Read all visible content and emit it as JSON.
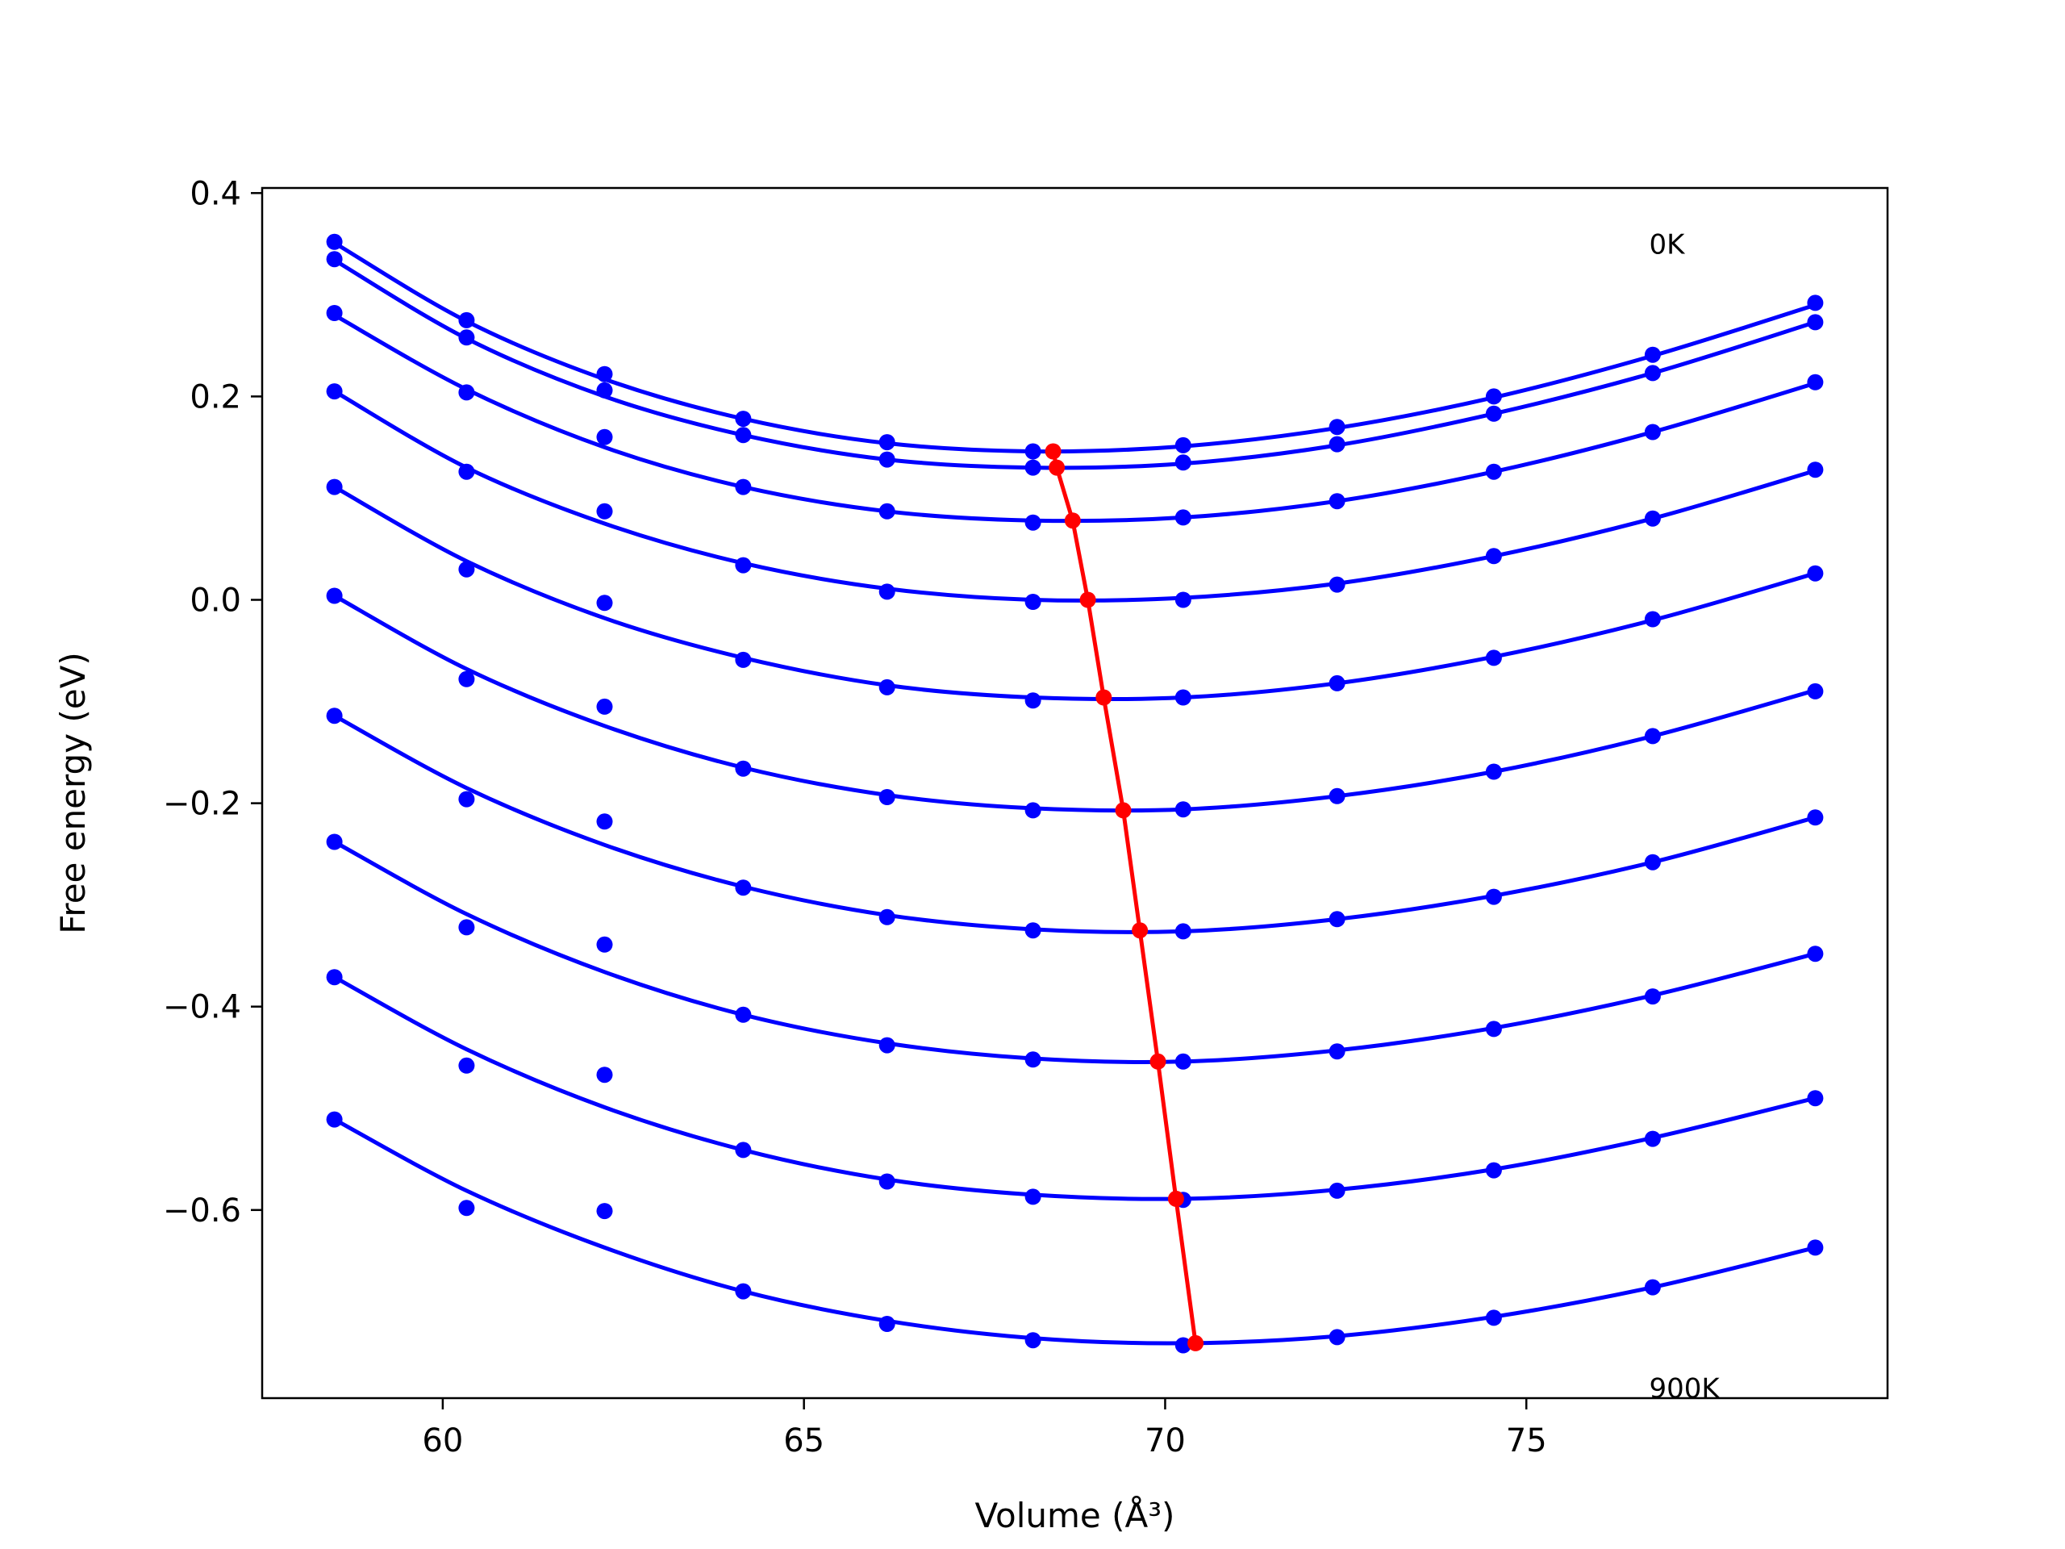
{
  "chart_data": {
    "type": "line",
    "xlabel": "Volume (Å³)",
    "ylabel": "Free energy (eV)",
    "xlim": [
      57.5,
      80.0
    ],
    "ylim": [
      -0.785,
      0.405
    ],
    "xticks": [
      60,
      65,
      70,
      75
    ],
    "yticks": [
      0.4,
      0.2,
      0.0,
      -0.2,
      -0.4,
      -0.6
    ],
    "ytick_labels": [
      "0.4",
      "0.2",
      "0.0",
      "−0.2",
      "−0.4",
      "−0.6"
    ],
    "grid": false,
    "legend": "none",
    "x": [
      58.5,
      60.33,
      62.24,
      64.16,
      66.15,
      68.17,
      70.25,
      72.38,
      74.55,
      76.75,
      79.0
    ],
    "annotations": [
      {
        "text": "0K",
        "x": 76.7,
        "y": 0.35
      },
      {
        "text": "900K",
        "x": 76.7,
        "y": -0.775
      }
    ],
    "series": [
      {
        "color": "#0000ff",
        "points": [
          0.352,
          0.275,
          0.222,
          0.178,
          0.155,
          0.146,
          0.152,
          0.17,
          0.2,
          0.241,
          0.292
        ],
        "fit": [
          0.351,
          0.274,
          0.217,
          0.178,
          0.154,
          0.146,
          0.151,
          0.169,
          0.199,
          0.24,
          0.29
        ]
      },
      {
        "color": "#0000ff",
        "points": [
          0.335,
          0.258,
          0.206,
          0.162,
          0.138,
          0.13,
          0.135,
          0.153,
          0.183,
          0.223,
          0.273
        ],
        "fit": [
          0.334,
          0.257,
          0.2,
          0.162,
          0.138,
          0.13,
          0.134,
          0.152,
          0.183,
          0.223,
          0.273
        ]
      },
      {
        "color": "#0000ff",
        "points": [
          0.282,
          0.204,
          0.16,
          0.111,
          0.087,
          0.076,
          0.081,
          0.097,
          0.126,
          0.165,
          0.214
        ],
        "fit": [
          0.28,
          0.207,
          0.15,
          0.111,
          0.087,
          0.078,
          0.081,
          0.097,
          0.126,
          0.165,
          0.213
        ]
      },
      {
        "color": "#0000ff",
        "points": [
          0.205,
          0.126,
          0.087,
          0.034,
          0.008,
          -0.002,
          0.0,
          0.015,
          0.043,
          0.08,
          0.128
        ],
        "fit": [
          0.205,
          0.13,
          0.075,
          0.036,
          0.011,
          0.0,
          0.002,
          0.016,
          0.043,
          0.08,
          0.127
        ]
      },
      {
        "color": "#0000ff",
        "points": [
          0.111,
          0.03,
          -0.003,
          -0.059,
          -0.086,
          -0.099,
          -0.096,
          -0.082,
          -0.057,
          -0.019,
          0.026
        ],
        "fit": [
          0.111,
          0.038,
          -0.018,
          -0.057,
          -0.084,
          -0.096,
          -0.096,
          -0.082,
          -0.056,
          -0.02,
          0.026
        ]
      },
      {
        "color": "#0000ff",
        "points": [
          0.004,
          -0.078,
          -0.105,
          -0.166,
          -0.194,
          -0.207,
          -0.206,
          -0.193,
          -0.169,
          -0.134,
          -0.09
        ],
        "fit": [
          0.004,
          -0.068,
          -0.124,
          -0.165,
          -0.192,
          -0.205,
          -0.206,
          -0.193,
          -0.169,
          -0.134,
          -0.089
        ]
      },
      {
        "color": "#0000ff",
        "points": [
          -0.114,
          -0.196,
          -0.218,
          -0.283,
          -0.312,
          -0.325,
          -0.326,
          -0.314,
          -0.292,
          -0.258,
          -0.214
        ],
        "fit": [
          -0.114,
          -0.185,
          -0.241,
          -0.282,
          -0.31,
          -0.324,
          -0.326,
          -0.314,
          -0.291,
          -0.258,
          -0.214
        ]
      },
      {
        "color": "#0000ff",
        "points": [
          -0.238,
          -0.322,
          -0.339,
          -0.408,
          -0.438,
          -0.452,
          -0.454,
          -0.444,
          -0.422,
          -0.39,
          -0.348
        ],
        "fit": [
          -0.238,
          -0.309,
          -0.366,
          -0.408,
          -0.436,
          -0.451,
          -0.454,
          -0.443,
          -0.421,
          -0.389,
          -0.348
        ]
      },
      {
        "color": "#0000ff",
        "points": [
          -0.371,
          -0.458,
          -0.467,
          -0.541,
          -0.572,
          -0.587,
          -0.59,
          -0.581,
          -0.561,
          -0.53,
          -0.49
        ],
        "fit": [
          -0.371,
          -0.442,
          -0.499,
          -0.541,
          -0.57,
          -0.585,
          -0.589,
          -0.58,
          -0.56,
          -0.529,
          -0.49
        ]
      },
      {
        "color": "#0000ff",
        "points": [
          -0.511,
          -0.598,
          -0.601,
          -0.68,
          -0.712,
          -0.728,
          -0.733,
          -0.725,
          -0.706,
          -0.676,
          -0.637
        ],
        "fit": [
          -0.511,
          -0.581,
          -0.637,
          -0.68,
          -0.709,
          -0.726,
          -0.731,
          -0.724,
          -0.705,
          -0.676,
          -0.637
        ]
      }
    ],
    "minima": {
      "color": "#ff0000",
      "x": [
        68.45,
        68.5,
        68.72,
        68.93,
        69.15,
        69.42,
        69.65,
        69.9,
        70.15,
        70.42
      ],
      "y": [
        0.146,
        0.13,
        0.078,
        0.0,
        -0.096,
        -0.207,
        -0.325,
        -0.454,
        -0.589,
        -0.731
      ]
    }
  }
}
